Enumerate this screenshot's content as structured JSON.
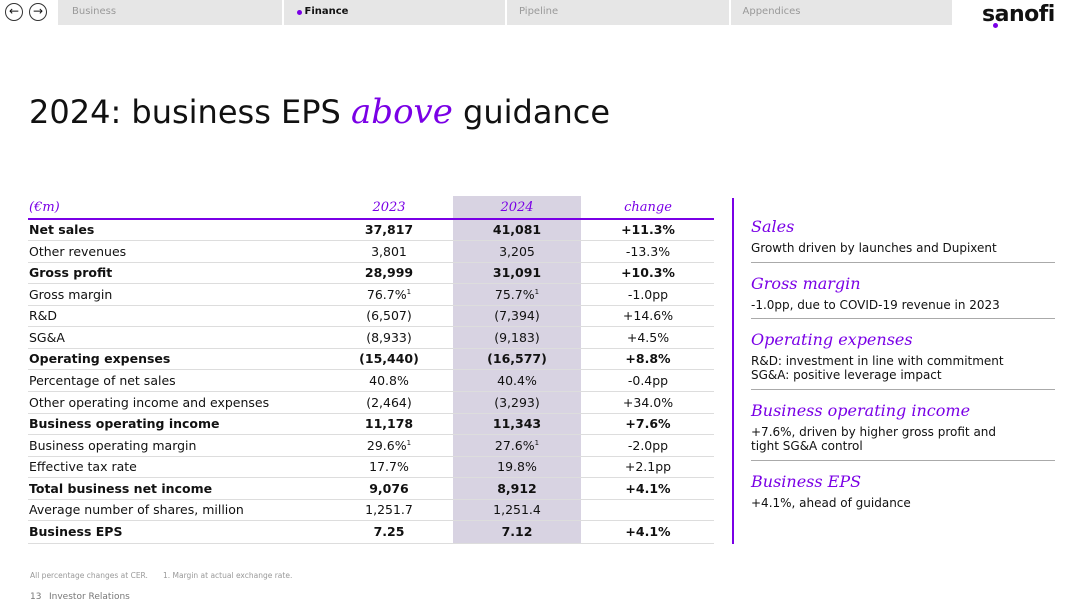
{
  "nav": {
    "items": [
      "Business",
      "Finance",
      "Pipeline",
      "Appendices"
    ],
    "active": 1,
    "logo": "sanofi"
  },
  "title": {
    "before": "2024: business EPS ",
    "emphasis": "above",
    "after": " guidance"
  },
  "table": {
    "header": [
      "(€m)",
      "2023",
      "2024",
      "change"
    ],
    "rows": [
      {
        "label": "Net sales",
        "values": [
          "37,817",
          "41,081"
        ],
        "change": "+11.3%",
        "bold": true
      },
      {
        "label": "Other revenues",
        "values": [
          "3,801",
          "3,205"
        ],
        "change": "-13.3%"
      },
      {
        "label": "Gross profit",
        "values": [
          "28,999",
          "31,091"
        ],
        "change": "+10.3%",
        "bold": true
      },
      {
        "label": "Gross margin",
        "values": [
          {
            "text": "76.7%",
            "sup": "1"
          },
          {
            "text": "75.7%",
            "sup": "1"
          }
        ],
        "change": "-1.0pp"
      },
      {
        "label": "R&D",
        "values": [
          "(6,507)",
          "(7,394)"
        ],
        "change": "+14.6%"
      },
      {
        "label": "SG&A",
        "values": [
          "(8,933)",
          "(9,183)"
        ],
        "change": "+4.5%"
      },
      {
        "label": "Operating expenses",
        "values": [
          "(15,440)",
          "(16,577)"
        ],
        "change": "+8.8%",
        "bold": true
      },
      {
        "label": "Percentage of net sales",
        "values": [
          "40.8%",
          "40.4%"
        ],
        "change": "-0.4pp"
      },
      {
        "label": "Other operating income and expenses",
        "values": [
          "(2,464)",
          "(3,293)"
        ],
        "change": "+34.0%"
      },
      {
        "label": "Business operating income",
        "values": [
          "11,178",
          "11,343"
        ],
        "change": "+7.6%",
        "bold": true
      },
      {
        "label": "Business operating margin",
        "values": [
          {
            "text": "29.6%",
            "sup": "1"
          },
          {
            "text": "27.6%",
            "sup": "1"
          }
        ],
        "change": "-2.0pp"
      },
      {
        "label": "Effective tax rate",
        "values": [
          "17.7%",
          "19.8%"
        ],
        "change": "+2.1pp"
      },
      {
        "label": "Total business net income",
        "values": [
          "9,076",
          "8,912"
        ],
        "change": "+4.1%",
        "bold": true
      },
      {
        "label": "Average number of shares, million",
        "values": [
          "1,251.7",
          "1,251.4"
        ]
      },
      {
        "label": "Business EPS",
        "values": [
          "7.25",
          "7.12"
        ],
        "change": "+4.1%",
        "bold": true
      }
    ]
  },
  "panel": [
    {
      "heading": "Sales",
      "lines": [
        "Growth driven by launches and Dupixent"
      ]
    },
    {
      "heading": "Gross margin",
      "lines": [
        "-1.0pp, due to COVID-19 revenue in 2023"
      ]
    },
    {
      "heading": "Operating expenses",
      "lines": [
        "R&D: investment in line with commitment",
        "SG&A: positive leverage impact"
      ]
    },
    {
      "heading": "Business operating income",
      "lines": [
        "+7.6%, driven by higher gross profit and",
        "tight SG&A control"
      ]
    },
    {
      "heading": "Business EPS",
      "lines": [
        "+4.1%, ahead of guidance"
      ]
    }
  ],
  "footer": {
    "notes": [
      "All percentage changes at CER.",
      "1. Margin at actual exchange rate."
    ],
    "page": "13",
    "section": "Investor Relations"
  }
}
